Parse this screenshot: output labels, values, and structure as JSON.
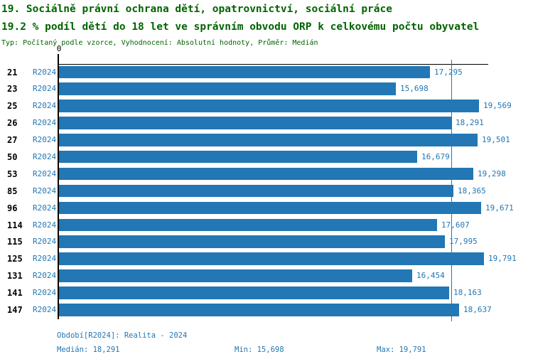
{
  "header": {
    "title_line1": "19. Sociálně právní ochrana dětí, opatrovnictví, sociální práce",
    "title_line2": "19.2 % podíl dětí do 18 let ve správním obvodu ORP k celkovému počtu obyvatel",
    "meta_line": "Typ: Počítaný podle vzorce, Vyhodnocení: Absolutní hodnoty, Průměr: Medián"
  },
  "chart_data": {
    "type": "bar",
    "orientation": "horizontal",
    "series_name": "R2024",
    "categories": [
      "21",
      "23",
      "25",
      "26",
      "27",
      "50",
      "53",
      "85",
      "96",
      "114",
      "115",
      "125",
      "131",
      "141",
      "147"
    ],
    "values": [
      17295,
      15698,
      19569,
      18291,
      19501,
      16679,
      19298,
      18365,
      19671,
      17607,
      17995,
      19791,
      16454,
      18163,
      18637
    ],
    "value_labels": [
      "17,295",
      "15,698",
      "19,569",
      "18,291",
      "19,501",
      "16,679",
      "19,298",
      "18,365",
      "19,671",
      "17,607",
      "17,995",
      "19,791",
      "16,454",
      "18,163",
      "18,637"
    ],
    "xlim": [
      0,
      20000
    ],
    "x_origin_label": "0",
    "median_line": {
      "value": 18291,
      "label": "18,291"
    },
    "min": {
      "value": 15698,
      "label": "15,698"
    },
    "max": {
      "value": 19791,
      "label": "19,791"
    },
    "grid": "none",
    "legend": "none",
    "colors": {
      "bar": "#2277b4",
      "value_text": "#2277b4",
      "title_text": "#006400",
      "axis": "#000000",
      "median_line": "#2277b4"
    }
  },
  "footer": {
    "period_line": "Období[R2024]: Realita - 2024",
    "median_text": "Medián: 18,291",
    "min_text": "Min: 15,698",
    "max_text": "Max: 19,791"
  }
}
